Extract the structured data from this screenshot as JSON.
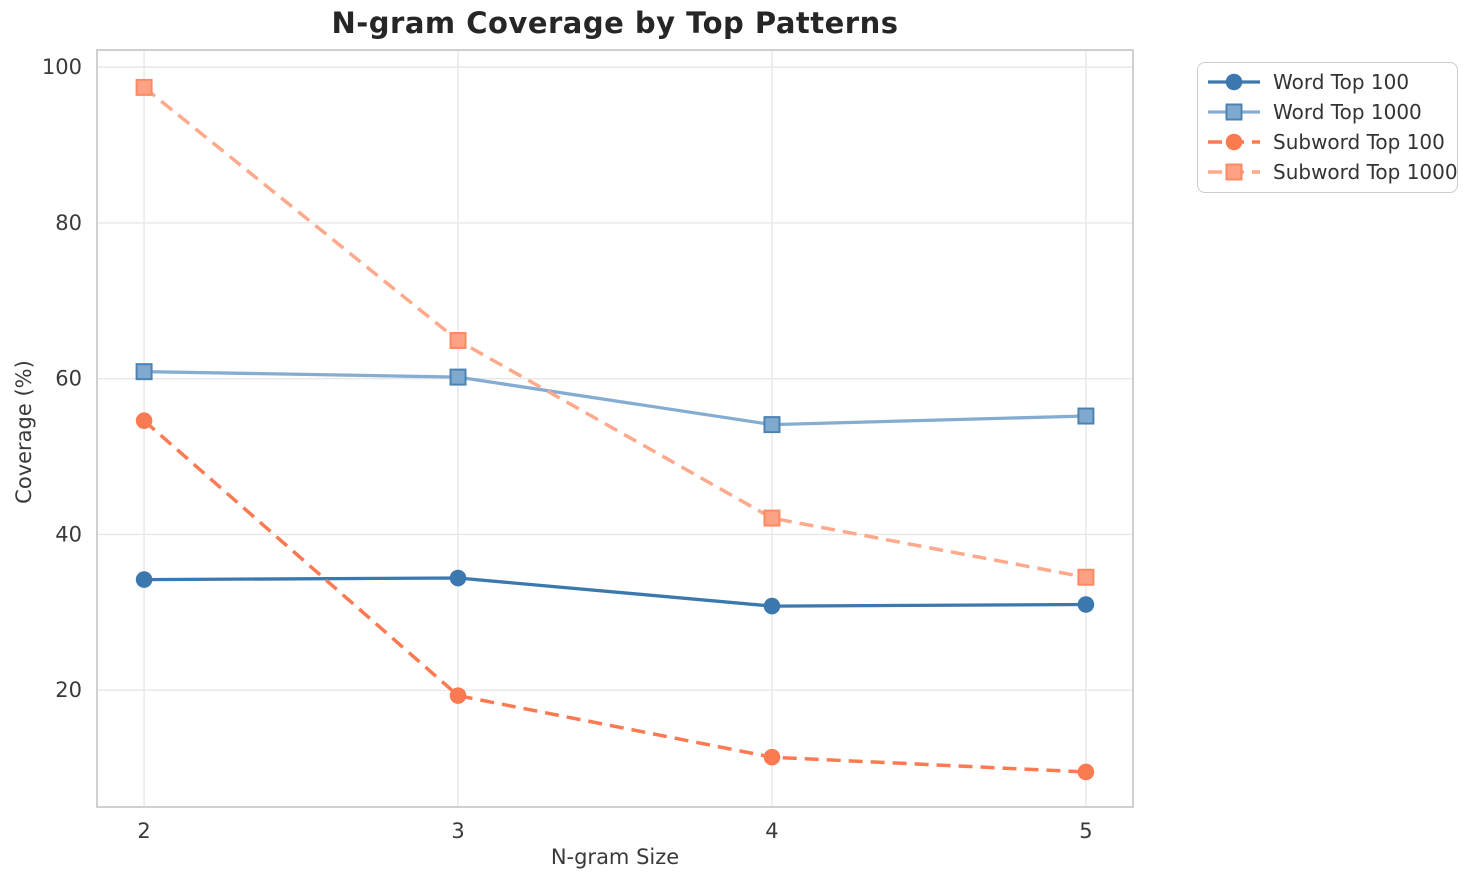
{
  "figure": {
    "title": "N-gram Coverage by Top Patterns",
    "xlabel": "N-gram Size",
    "ylabel": "Coverage (%)"
  },
  "chart_data": {
    "type": "line",
    "title": "N-gram Coverage by Top Patterns",
    "xlabel": "N-gram Size",
    "ylabel": "Coverage (%)",
    "x": [
      2,
      3,
      4,
      5
    ],
    "xtick_labels": [
      "2",
      "3",
      "4",
      "5"
    ],
    "yticks": [
      20,
      40,
      60,
      80,
      100
    ],
    "ytick_labels": [
      "20",
      "40",
      "60",
      "80",
      "100"
    ],
    "xlim": [
      1.85,
      5.15
    ],
    "ylim": [
      5.0,
      102.2
    ],
    "grid": true,
    "legend_position": "outside-top-right",
    "series": [
      {
        "name": "Word Top 100",
        "values": [
          34.2,
          34.4,
          30.8,
          31.0
        ],
        "line_color": "#3a78ae",
        "marker_fill": "#3a78ae",
        "marker_edge": "#3a78ae",
        "line_style": "solid",
        "marker": "circle"
      },
      {
        "name": "Word Top 1000",
        "values": [
          60.9,
          60.2,
          54.1,
          55.2
        ],
        "line_color": "#85add2",
        "marker_fill": "#7fa9ce",
        "marker_edge": "#4d83b2",
        "line_style": "solid",
        "marker": "square"
      },
      {
        "name": "Subword Top 100",
        "values": [
          54.6,
          19.3,
          11.4,
          9.5
        ],
        "line_color": "#fb7a52",
        "marker_fill": "#fb7a52",
        "marker_edge": "#fb7a52",
        "line_style": "dashed",
        "marker": "circle"
      },
      {
        "name": "Subword Top 1000",
        "values": [
          97.4,
          64.9,
          42.1,
          34.5
        ],
        "line_color": "#fda98b",
        "marker_fill": "#fca183",
        "marker_edge": "#fb8a62",
        "line_style": "dashed",
        "marker": "square"
      }
    ],
    "style": {
      "grid_color": "#e7e7e7",
      "spine_color": "#cbcbcb",
      "tick_text_color": "#3a3a3a",
      "title_color": "#262626",
      "background": "#ffffff"
    }
  }
}
